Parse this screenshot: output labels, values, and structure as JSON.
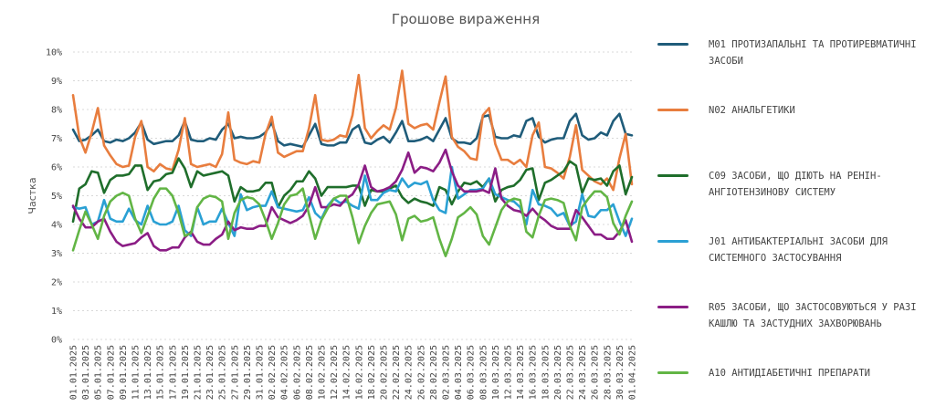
{
  "chart_data": {
    "type": "line",
    "title": "Грошове вираження",
    "ylabel": "Частка",
    "xlabel": "",
    "ylim": [
      0,
      10
    ],
    "yticks": [
      "0%",
      "1%",
      "2%",
      "3%",
      "4%",
      "5%",
      "6%",
      "7%",
      "8%",
      "9%",
      "10%"
    ],
    "grid": "horizontal dashed",
    "legend_position": "right",
    "x": [
      "01.01.2025",
      "02.01.2025",
      "03.01.2025",
      "04.01.2025",
      "05.01.2025",
      "06.01.2025",
      "07.01.2025",
      "08.01.2025",
      "09.01.2025",
      "10.01.2025",
      "11.01.2025",
      "12.01.2025",
      "13.01.2025",
      "14.01.2025",
      "15.01.2025",
      "16.01.2025",
      "17.01.2025",
      "18.01.2025",
      "19.01.2025",
      "20.01.2025",
      "21.01.2025",
      "22.01.2025",
      "23.01.2025",
      "24.01.2025",
      "25.01.2025",
      "26.01.2025",
      "27.01.2025",
      "28.01.2025",
      "29.01.2025",
      "30.01.2025",
      "31.01.2025",
      "01.02.2025",
      "02.02.2025",
      "03.02.2025",
      "04.02.2025",
      "05.02.2025",
      "06.02.2025",
      "07.02.2025",
      "08.02.2025",
      "09.02.2025",
      "10.02.2025",
      "11.02.2025",
      "12.02.2025",
      "13.02.2025",
      "14.02.2025",
      "15.02.2025",
      "16.02.2025",
      "17.02.2025",
      "18.02.2025",
      "19.02.2025",
      "20.02.2025",
      "21.02.2025",
      "22.02.2025",
      "23.02.2025",
      "24.02.2025",
      "25.02.2025",
      "26.02.2025",
      "27.02.2025",
      "28.02.2025",
      "01.03.2025",
      "02.03.2025",
      "03.03.2025",
      "04.03.2025",
      "05.03.2025",
      "06.03.2025",
      "07.03.2025",
      "08.03.2025",
      "09.03.2025",
      "10.03.2025",
      "11.03.2025",
      "12.03.2025",
      "13.03.2025",
      "14.03.2025",
      "15.03.2025",
      "16.03.2025",
      "17.03.2025",
      "18.03.2025",
      "19.03.2025",
      "20.03.2025",
      "21.03.2025",
      "22.03.2025",
      "23.03.2025",
      "24.03.2025",
      "25.03.2025",
      "26.03.2025",
      "27.03.2025",
      "28.03.2025",
      "29.03.2025",
      "30.03.2025",
      "31.03.2025",
      "01.04.2025"
    ],
    "x_tick_labels": [
      "01.01.2025",
      "03.01.2025",
      "05.01.2025",
      "07.01.2025",
      "09.01.2025",
      "11.01.2025",
      "13.01.2025",
      "15.01.2025",
      "17.01.2025",
      "19.01.2025",
      "21.01.2025",
      "23.01.2025",
      "25.01.2025",
      "27.01.2025",
      "29.01.2025",
      "31.01.2025",
      "02.02.2025",
      "04.02.2025",
      "06.02.2025",
      "08.02.2025",
      "10.02.2025",
      "12.02.2025",
      "14.02.2025",
      "16.02.2025",
      "18.02.2025",
      "20.02.2025",
      "22.02.2025",
      "24.02.2025",
      "26.02.2025",
      "28.02.2025",
      "02.03.2025",
      "04.03.2025",
      "06.03.2025",
      "08.03.2025",
      "10.03.2025",
      "12.03.2025",
      "14.03.2025",
      "16.03.2025",
      "18.03.2025",
      "20.03.2025",
      "22.03.2025",
      "24.03.2025",
      "26.03.2025",
      "28.03.2025",
      "30.03.2025",
      "01.04.2025"
    ],
    "series": [
      {
        "name": "M01 ПРОТИЗАПАЛЬНІ ТА ПРОТИРЕВМАТИЧНІ ЗАСОБИ",
        "color": "#1f5c7a",
        "values": [
          7.3,
          6.9,
          6.95,
          7.1,
          7.3,
          6.9,
          6.85,
          6.95,
          6.9,
          7.0,
          7.2,
          7.55,
          6.95,
          6.8,
          6.85,
          6.9,
          6.9,
          7.1,
          7.6,
          6.95,
          6.9,
          6.9,
          7.0,
          6.95,
          7.3,
          7.5,
          7.0,
          7.05,
          7.0,
          7.0,
          7.05,
          7.2,
          7.55,
          6.9,
          6.75,
          6.8,
          6.75,
          6.7,
          7.1,
          7.5,
          6.8,
          6.75,
          6.75,
          6.85,
          6.85,
          7.3,
          7.45,
          6.85,
          6.8,
          6.95,
          7.05,
          6.85,
          7.2,
          7.6,
          6.9,
          6.9,
          6.95,
          7.05,
          6.9,
          7.3,
          7.7,
          7.0,
          6.85,
          6.85,
          6.8,
          7.0,
          7.75,
          7.8,
          7.05,
          7.0,
          7.0,
          7.1,
          7.05,
          7.6,
          7.7,
          7.05,
          6.85,
          6.95,
          7.0,
          7.0,
          7.6,
          7.85,
          7.1,
          6.95,
          7.0,
          7.2,
          7.1,
          7.6,
          7.85,
          7.15,
          7.1
        ]
      },
      {
        "name": "N02 АНАЛЬГЕТИКИ",
        "color": "#e87d3e",
        "values": [
          8.5,
          7.05,
          6.5,
          7.2,
          8.05,
          6.75,
          6.4,
          6.1,
          6.0,
          6.05,
          7.05,
          7.6,
          6.0,
          5.85,
          6.1,
          5.95,
          5.9,
          6.6,
          7.7,
          6.1,
          6.0,
          6.05,
          6.1,
          6.0,
          6.45,
          7.9,
          6.25,
          6.15,
          6.1,
          6.2,
          6.15,
          7.15,
          7.75,
          6.5,
          6.35,
          6.45,
          6.55,
          6.55,
          7.35,
          8.5,
          6.95,
          6.9,
          6.95,
          7.1,
          7.05,
          7.8,
          9.2,
          7.35,
          7.0,
          7.25,
          7.45,
          7.3,
          8.05,
          9.35,
          7.5,
          7.35,
          7.45,
          7.5,
          7.3,
          8.25,
          9.15,
          7.05,
          6.7,
          6.55,
          6.3,
          6.25,
          7.8,
          8.05,
          6.8,
          6.25,
          6.25,
          6.1,
          6.25,
          6.0,
          7.1,
          7.55,
          6.0,
          5.95,
          5.8,
          5.6,
          6.35,
          7.45,
          5.9,
          5.7,
          5.5,
          5.4,
          5.6,
          5.2,
          6.3,
          7.15,
          5.4
        ]
      },
      {
        "name": "C09 ЗАСОБИ, ЩО ДІЮТЬ НА РЕНІН-АНГІОТЕНЗИНОВУ СИСТЕМУ",
        "color": "#1f6e2b",
        "values": [
          4.1,
          5.25,
          5.4,
          5.85,
          5.8,
          5.1,
          5.55,
          5.7,
          5.7,
          5.75,
          6.05,
          6.05,
          5.2,
          5.5,
          5.55,
          5.75,
          5.8,
          6.3,
          5.95,
          5.3,
          5.85,
          5.7,
          5.75,
          5.8,
          5.85,
          5.7,
          4.8,
          5.3,
          5.15,
          5.15,
          5.2,
          5.45,
          5.45,
          4.6,
          5.0,
          5.2,
          5.5,
          5.5,
          5.85,
          5.6,
          5.0,
          5.3,
          5.3,
          5.3,
          5.3,
          5.35,
          5.35,
          4.65,
          5.2,
          5.15,
          5.15,
          5.25,
          5.35,
          4.95,
          4.75,
          4.9,
          4.8,
          4.75,
          4.65,
          5.3,
          5.2,
          4.7,
          5.15,
          5.45,
          5.4,
          5.5,
          5.3,
          5.6,
          4.8,
          5.2,
          5.3,
          5.35,
          5.55,
          5.9,
          5.95,
          4.85,
          5.45,
          5.55,
          5.7,
          5.85,
          6.2,
          6.05,
          5.1,
          5.6,
          5.55,
          5.6,
          5.35,
          5.85,
          6.05,
          5.05,
          5.65
        ]
      },
      {
        "name": "J01 АНТИБАКТЕРІАЛЬНІ ЗАСОБИ ДЛЯ СИСТЕМНОГО ЗАСТОСУВАННЯ",
        "color": "#2aa0d4",
        "values": [
          4.6,
          4.55,
          4.6,
          4.0,
          4.1,
          4.85,
          4.2,
          4.1,
          4.1,
          4.55,
          4.15,
          4.0,
          4.65,
          4.1,
          4.0,
          4.0,
          4.1,
          4.65,
          3.8,
          3.6,
          4.6,
          4.0,
          4.1,
          4.1,
          4.55,
          4.05,
          3.6,
          5.05,
          4.5,
          4.6,
          4.65,
          4.65,
          5.15,
          4.6,
          4.55,
          4.5,
          4.45,
          4.5,
          4.95,
          4.4,
          4.2,
          4.65,
          4.9,
          4.75,
          4.8,
          4.65,
          4.55,
          5.7,
          4.85,
          4.85,
          5.1,
          5.2,
          5.15,
          5.6,
          5.3,
          5.45,
          5.4,
          5.5,
          4.85,
          4.5,
          4.4,
          6.0,
          4.9,
          5.05,
          5.2,
          5.2,
          5.25,
          5.6,
          5.05,
          4.95,
          4.85,
          4.8,
          4.6,
          4.0,
          5.2,
          4.7,
          4.65,
          4.55,
          4.3,
          4.4,
          3.95,
          4.1,
          5.05,
          4.3,
          4.25,
          4.5,
          4.5,
          4.7,
          4.1,
          3.6,
          4.2
        ]
      },
      {
        "name": "R05 ЗАСОБИ, ЩО ЗАСТОСОВУЮТЬСЯ У РАЗІ КАШЛЮ ТА ЗАСТУДНИХ ЗАХВОРЮВАНЬ",
        "color": "#8b1d85",
        "values": [
          4.65,
          4.2,
          3.9,
          3.9,
          4.1,
          4.2,
          3.75,
          3.4,
          3.25,
          3.3,
          3.35,
          3.55,
          3.7,
          3.25,
          3.1,
          3.1,
          3.2,
          3.2,
          3.55,
          3.75,
          3.4,
          3.3,
          3.3,
          3.5,
          3.65,
          4.1,
          3.8,
          3.9,
          3.85,
          3.85,
          3.95,
          3.95,
          4.6,
          4.25,
          4.15,
          4.05,
          4.15,
          4.3,
          4.65,
          5.3,
          4.6,
          4.6,
          4.7,
          4.65,
          4.9,
          5.05,
          5.4,
          6.05,
          5.3,
          5.15,
          5.2,
          5.3,
          5.5,
          5.9,
          6.5,
          5.8,
          6.0,
          5.95,
          5.85,
          6.15,
          6.6,
          5.85,
          5.35,
          5.15,
          5.15,
          5.15,
          5.2,
          5.1,
          5.95,
          4.9,
          4.65,
          4.5,
          4.45,
          4.3,
          4.55,
          4.3,
          4.15,
          3.95,
          3.85,
          3.85,
          3.85,
          4.5,
          4.25,
          3.95,
          3.65,
          3.65,
          3.5,
          3.5,
          3.75,
          4.15,
          3.4
        ]
      },
      {
        "name": "A10 АНТИДІАБЕТИЧНІ ПРЕПАРАТИ",
        "color": "#62b545",
        "values": [
          3.1,
          3.8,
          4.45,
          4.0,
          3.5,
          4.3,
          4.8,
          5.0,
          5.1,
          5.0,
          4.2,
          3.7,
          4.3,
          4.9,
          5.25,
          5.25,
          5.0,
          4.4,
          3.6,
          3.7,
          4.6,
          4.9,
          5.0,
          4.95,
          4.8,
          3.5,
          4.4,
          4.85,
          4.95,
          4.9,
          4.7,
          4.15,
          3.5,
          4.05,
          4.7,
          5.0,
          5.05,
          5.25,
          4.35,
          3.5,
          4.15,
          4.55,
          4.9,
          5.0,
          5.0,
          4.25,
          3.35,
          3.95,
          4.4,
          4.7,
          4.75,
          4.8,
          4.35,
          3.45,
          4.2,
          4.3,
          4.1,
          4.15,
          4.25,
          3.5,
          2.9,
          3.5,
          4.25,
          4.4,
          4.6,
          4.35,
          3.6,
          3.3,
          3.9,
          4.5,
          4.8,
          4.9,
          4.85,
          3.75,
          3.55,
          4.3,
          4.85,
          4.9,
          4.85,
          4.75,
          3.95,
          3.45,
          4.6,
          4.9,
          5.15,
          5.15,
          4.95,
          4.05,
          3.65,
          4.3,
          4.8
        ]
      }
    ]
  }
}
